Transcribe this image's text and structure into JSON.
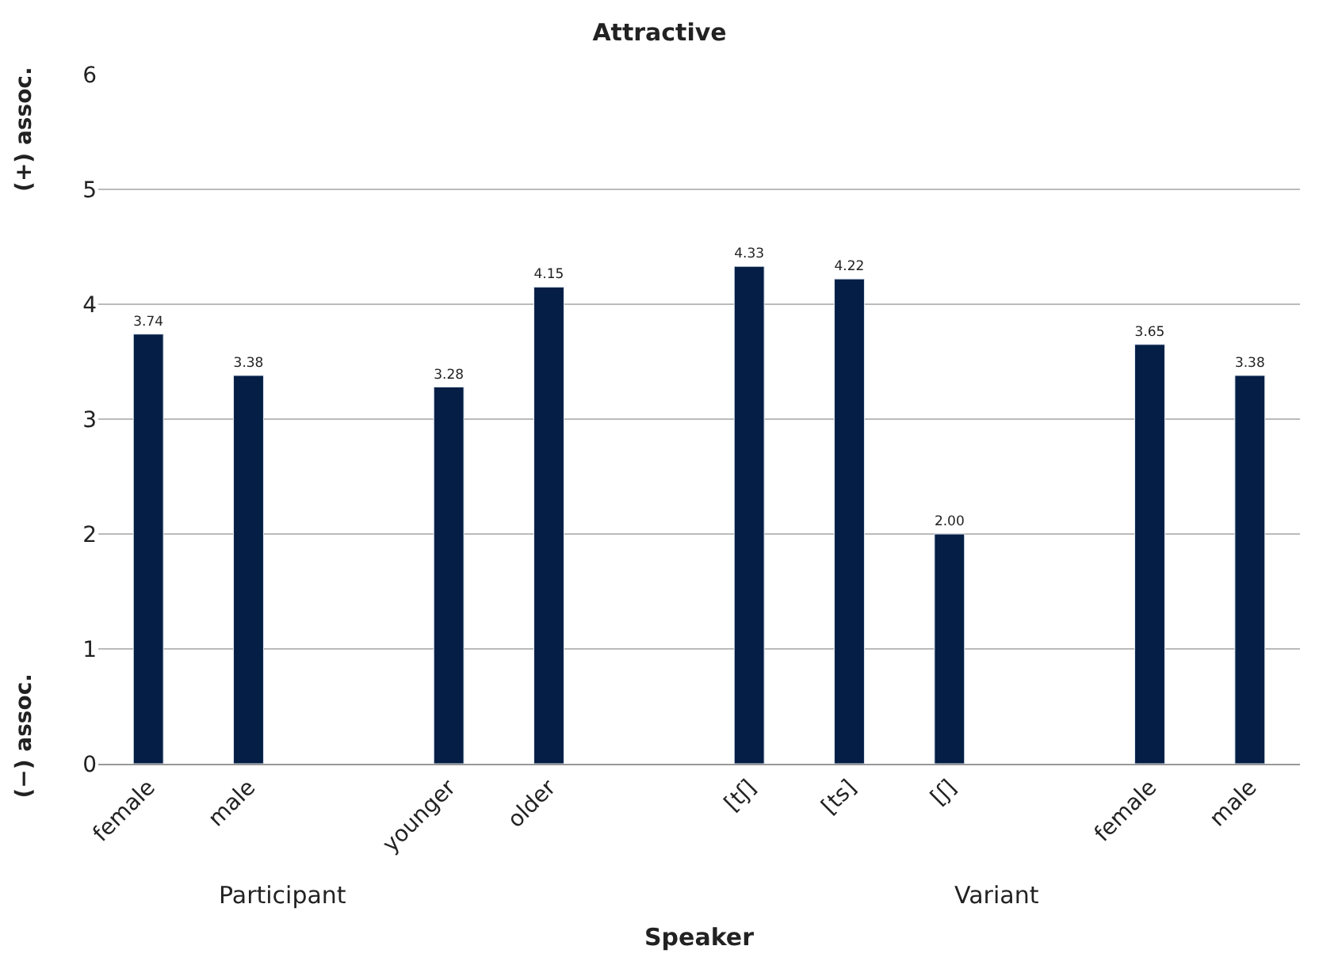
{
  "chart_data": {
    "type": "bar",
    "title": "Attractive",
    "xlabel": "Speaker",
    "categories": [
      "female",
      "male",
      null,
      "younger",
      "older",
      null,
      "[tʃ]",
      "[ts]",
      "[ʃ]",
      null,
      "female",
      "male"
    ],
    "values": [
      3.74,
      3.38,
      null,
      3.28,
      4.15,
      null,
      4.33,
      4.22,
      2.0,
      null,
      3.65,
      3.38
    ],
    "value_labels": [
      "3.74",
      "3.38",
      null,
      "3.28",
      "4.15",
      null,
      "4.33",
      "4.22",
      "2.00",
      null,
      "3.65",
      "3.38"
    ],
    "color": "#041e45",
    "ylim": [
      0,
      6
    ],
    "yticks": [
      0,
      1,
      2,
      3,
      4,
      5,
      6
    ],
    "grid": "y",
    "legend": false,
    "annotations": [
      "(+) assoc.",
      "(−) assoc.",
      "Participant",
      "Variant"
    ]
  }
}
